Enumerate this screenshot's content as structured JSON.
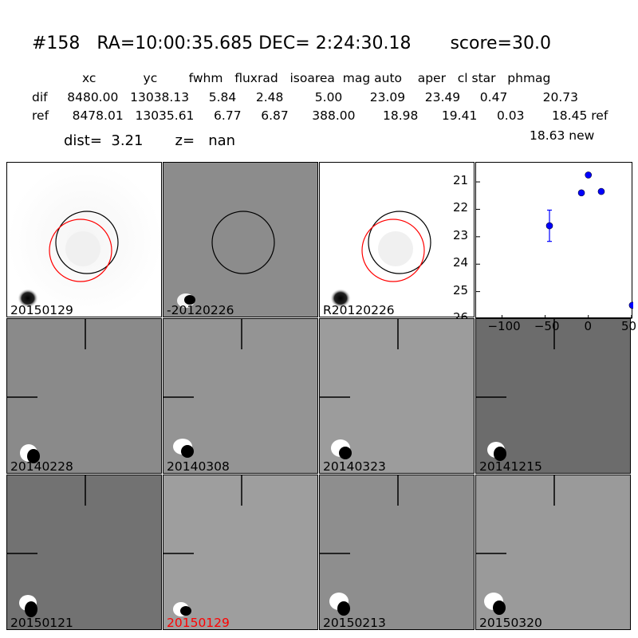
{
  "header": {
    "title": "#158   RA=10:00:35.685 DEC= 2:24:30.18       score=30.0",
    "table_header": "xc            yc        fwhm   fluxrad   isoarea  mag auto    aper   cl star   phmag",
    "row_dif": "dif     8480.00   13038.13     5.84     2.48        5.00       23.09     23.49     0.47         20.73",
    "row_ref": "ref      8478.01   13035.61     6.77     6.87      388.00       18.98      19.41     0.03       18.45 ref",
    "row_new": "18.63 new",
    "dist_line": "dist=  3.21       z=   nan"
  },
  "panels": {
    "row1": [
      {
        "label": "20150129",
        "label_color": "#000000"
      },
      {
        "label": "-20120226",
        "label_color": "#000000"
      },
      {
        "label": "R20120226",
        "label_color": "#000000"
      }
    ],
    "row2": [
      {
        "label": "20140228",
        "label_color": "#000000"
      },
      {
        "label": "20140308",
        "label_color": "#000000"
      },
      {
        "label": "20140323",
        "label_color": "#000000"
      },
      {
        "label": "20141215",
        "label_color": "#000000"
      }
    ],
    "row3": [
      {
        "label": "20150121",
        "label_color": "#000000"
      },
      {
        "label": "20150129",
        "label_color": "#ff0000"
      },
      {
        "label": "20150213",
        "label_color": "#000000"
      },
      {
        "label": "20150320",
        "label_color": "#000000"
      }
    ]
  },
  "colors": {
    "circle_black": "#000000",
    "circle_red": "#ff0000",
    "point": "#0000ff",
    "highlight_label": "#ff0000"
  },
  "chart_data": {
    "type": "scatter",
    "title": "",
    "xlabel": "",
    "ylabel": "",
    "xlim": [
      -130,
      52
    ],
    "ylim": [
      26,
      20.3
    ],
    "y_inverted": true,
    "x_ticks": [
      "−100",
      "−50",
      "0",
      "50"
    ],
    "y_ticks": [
      "21",
      "22",
      "23",
      "24",
      "25",
      "26"
    ],
    "points": [
      {
        "x": -45,
        "y": 22.6,
        "err": 0.57
      },
      {
        "x": -8,
        "y": 21.4,
        "err": 0.06
      },
      {
        "x": 0,
        "y": 20.75,
        "err": 0.05
      },
      {
        "x": 15,
        "y": 21.35,
        "err": 0.06
      },
      {
        "x": 51,
        "y": 25.5,
        "err": 0.08
      }
    ]
  }
}
